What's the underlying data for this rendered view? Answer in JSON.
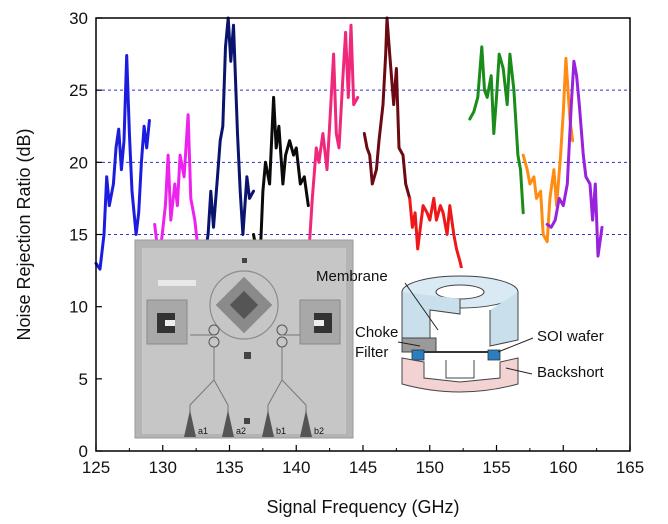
{
  "chart_data": {
    "type": "line",
    "title": "",
    "xlabel": "Signal Frequency (GHz)",
    "ylabel": "Noise Rejection Ratio (dB)",
    "xlim": [
      125,
      165
    ],
    "ylim": [
      0,
      30
    ],
    "xticks": [
      125,
      130,
      135,
      140,
      145,
      150,
      155,
      160,
      165
    ],
    "yticks": [
      0,
      5,
      10,
      15,
      20,
      25,
      30
    ],
    "grid": {
      "horizontal_dashed": [
        15,
        20,
        25
      ],
      "color": "#3333cc"
    },
    "legend": "none",
    "series": [
      {
        "color": "#1c1ce0",
        "points": [
          [
            125.0,
            13.0
          ],
          [
            125.3,
            12.6
          ],
          [
            125.6,
            15.0
          ],
          [
            125.8,
            19.0
          ],
          [
            126.0,
            17.0
          ],
          [
            126.3,
            18.5
          ],
          [
            126.5,
            21.0
          ],
          [
            126.7,
            22.3
          ],
          [
            126.9,
            19.5
          ],
          [
            127.1,
            21.5
          ],
          [
            127.3,
            27.4
          ],
          [
            127.5,
            22.0
          ],
          [
            127.7,
            18.0
          ],
          [
            128.0,
            15.0
          ],
          [
            128.2,
            16.5
          ],
          [
            128.4,
            20.0
          ],
          [
            128.6,
            22.5
          ],
          [
            128.8,
            21.0
          ],
          [
            129.0,
            22.9
          ]
        ]
      },
      {
        "color": "#ee22ee",
        "points": [
          [
            129.4,
            15.7
          ],
          [
            129.7,
            13.3
          ],
          [
            129.9,
            14.5
          ],
          [
            130.2,
            17.0
          ],
          [
            130.4,
            20.5
          ],
          [
            130.6,
            16.0
          ],
          [
            130.9,
            18.5
          ],
          [
            131.1,
            17.0
          ],
          [
            131.3,
            20.5
          ],
          [
            131.6,
            19.0
          ],
          [
            131.9,
            23.3
          ],
          [
            132.1,
            17.5
          ],
          [
            132.4,
            16.0
          ],
          [
            132.7,
            13.5
          ],
          [
            133.0,
            12.2
          ]
        ]
      },
      {
        "color": "#0a146e",
        "points": [
          [
            133.1,
            13.3
          ],
          [
            133.4,
            15.0
          ],
          [
            133.6,
            18.0
          ],
          [
            133.8,
            15.5
          ],
          [
            134.1,
            19.0
          ],
          [
            134.3,
            21.5
          ],
          [
            134.5,
            22.5
          ],
          [
            134.7,
            28.0
          ],
          [
            134.9,
            30.0
          ],
          [
            135.1,
            27.0
          ],
          [
            135.3,
            29.5
          ],
          [
            135.6,
            22.0
          ],
          [
            135.8,
            18.0
          ],
          [
            136.0,
            15.0
          ],
          [
            136.3,
            19.0
          ],
          [
            136.5,
            17.5
          ],
          [
            136.8,
            18.0
          ]
        ]
      },
      {
        "color": "#0a0a0a",
        "points": [
          [
            136.8,
            15.0
          ],
          [
            137.0,
            14.0
          ],
          [
            137.3,
            13.5
          ],
          [
            137.5,
            18.0
          ],
          [
            137.7,
            20.0
          ],
          [
            138.0,
            18.5
          ],
          [
            138.3,
            24.5
          ],
          [
            138.5,
            21.0
          ],
          [
            138.7,
            22.5
          ],
          [
            139.0,
            18.5
          ],
          [
            139.2,
            20.5
          ],
          [
            139.5,
            21.5
          ],
          [
            139.8,
            20.5
          ],
          [
            140.0,
            21.0
          ],
          [
            140.3,
            18.5
          ],
          [
            140.6,
            19.0
          ],
          [
            140.9,
            17.0
          ]
        ]
      },
      {
        "color": "#f0287c",
        "points": [
          [
            141.0,
            14.5
          ],
          [
            141.2,
            17.5
          ],
          [
            141.5,
            21.0
          ],
          [
            141.7,
            20.0
          ],
          [
            142.0,
            22.0
          ],
          [
            142.3,
            19.5
          ],
          [
            142.5,
            22.5
          ],
          [
            142.8,
            27.5
          ],
          [
            143.0,
            22.0
          ],
          [
            143.2,
            21.0
          ],
          [
            143.5,
            26.0
          ],
          [
            143.7,
            29.0
          ],
          [
            143.9,
            24.5
          ],
          [
            144.1,
            29.5
          ],
          [
            144.3,
            24.0
          ],
          [
            144.6,
            24.5
          ]
        ]
      },
      {
        "color": "#6b0a12",
        "points": [
          [
            145.1,
            22.0
          ],
          [
            145.3,
            21.0
          ],
          [
            145.5,
            20.5
          ],
          [
            145.7,
            18.5
          ],
          [
            146.0,
            19.5
          ],
          [
            146.2,
            21.5
          ],
          [
            146.5,
            24.0
          ],
          [
            146.7,
            27.5
          ],
          [
            146.8,
            30.0
          ],
          [
            147.0,
            27.5
          ],
          [
            147.3,
            24.0
          ],
          [
            147.5,
            26.5
          ],
          [
            147.7,
            21.0
          ],
          [
            148.0,
            20.5
          ],
          [
            148.2,
            18.5
          ],
          [
            148.5,
            17.5
          ]
        ]
      },
      {
        "color": "#ee1818",
        "points": [
          [
            148.5,
            17.5
          ],
          [
            148.7,
            15.5
          ],
          [
            148.9,
            16.5
          ],
          [
            149.1,
            14.0
          ],
          [
            149.3,
            15.5
          ],
          [
            149.5,
            17.0
          ],
          [
            149.8,
            16.5
          ],
          [
            150.0,
            16.0
          ],
          [
            150.3,
            17.5
          ],
          [
            150.5,
            16.0
          ],
          [
            150.8,
            17.0
          ],
          [
            151.0,
            16.5
          ],
          [
            151.3,
            15.0
          ],
          [
            151.5,
            17.0
          ],
          [
            151.8,
            15.0
          ],
          [
            152.0,
            14.0
          ],
          [
            152.3,
            13.0
          ],
          [
            152.6,
            11.5
          ],
          [
            152.9,
            11.3
          ]
        ]
      },
      {
        "color": "#1a8c1a",
        "points": [
          [
            153.0,
            23.0
          ],
          [
            153.3,
            23.5
          ],
          [
            153.6,
            24.5
          ],
          [
            153.9,
            28.0
          ],
          [
            154.1,
            25.0
          ],
          [
            154.3,
            24.5
          ],
          [
            154.6,
            26.0
          ],
          [
            154.8,
            22.0
          ],
          [
            155.0,
            24.5
          ],
          [
            155.2,
            27.5
          ],
          [
            155.5,
            26.5
          ],
          [
            155.8,
            24.0
          ],
          [
            156.0,
            27.5
          ],
          [
            156.3,
            25.0
          ],
          [
            156.6,
            20.5
          ],
          [
            156.8,
            19.5
          ],
          [
            157.0,
            16.5
          ]
        ]
      },
      {
        "color": "#ff8c12",
        "points": [
          [
            157.0,
            20.5
          ],
          [
            157.3,
            19.5
          ],
          [
            157.5,
            18.5
          ],
          [
            157.8,
            19.0
          ],
          [
            158.0,
            17.5
          ],
          [
            158.3,
            18.0
          ],
          [
            158.5,
            15.0
          ],
          [
            158.8,
            14.5
          ],
          [
            159.0,
            17.5
          ],
          [
            159.3,
            19.5
          ],
          [
            159.5,
            17.0
          ],
          [
            159.8,
            20.5
          ],
          [
            160.0,
            23.5
          ],
          [
            160.2,
            27.2
          ],
          [
            160.5,
            23.0
          ],
          [
            160.7,
            21.5
          ]
        ]
      },
      {
        "color": "#9922dd",
        "points": [
          [
            158.8,
            15.7
          ],
          [
            159.1,
            15.5
          ],
          [
            159.4,
            16.0
          ],
          [
            159.7,
            17.5
          ],
          [
            160.0,
            17.0
          ],
          [
            160.3,
            18.5
          ],
          [
            160.6,
            24.0
          ],
          [
            160.8,
            27.0
          ],
          [
            161.0,
            26.0
          ],
          [
            161.2,
            24.0
          ],
          [
            161.5,
            20.5
          ],
          [
            161.7,
            19.0
          ],
          [
            162.0,
            18.5
          ],
          [
            162.2,
            16.0
          ],
          [
            162.4,
            18.5
          ],
          [
            162.6,
            13.5
          ],
          [
            162.9,
            15.5
          ]
        ]
      }
    ],
    "annotations": {
      "membrane": "Membrane",
      "choke_line1": "Choke",
      "choke_line2": "Filter",
      "soi": "SOI wafer",
      "backshort": "Backshort",
      "port_a1": "a1",
      "port_a2": "a2",
      "port_b1": "b1",
      "port_b2": "b2"
    }
  }
}
